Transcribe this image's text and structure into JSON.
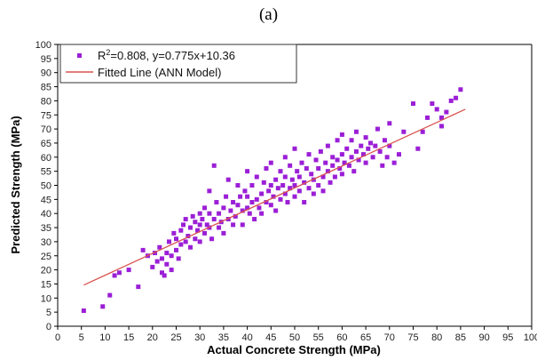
{
  "panel_label": "(a)",
  "chart_data": {
    "type": "scatter",
    "xlabel": "Actual Concrete Strength (MPa)",
    "ylabel": "Predicted Strength (MPa)",
    "xlim": [
      0,
      100
    ],
    "ylim": [
      0,
      100
    ],
    "xticks": [
      0,
      5,
      10,
      15,
      20,
      25,
      30,
      35,
      40,
      45,
      50,
      55,
      60,
      65,
      70,
      75,
      80,
      85,
      90,
      95,
      100
    ],
    "yticks": [
      0,
      5,
      10,
      15,
      20,
      25,
      30,
      35,
      40,
      45,
      50,
      55,
      60,
      65,
      70,
      75,
      80,
      85,
      90,
      95,
      100
    ],
    "grid": false,
    "legend_position": "top-left",
    "series": [
      {
        "name": "R2=0.808, y=0.775x+10.36",
        "legend_base": "R",
        "legend_sup": "2",
        "legend_rest": "=0.808, y=0.775x+10.36",
        "kind": "scatter",
        "color": "#9b1fd6",
        "points": [
          [
            5.5,
            5.5
          ],
          [
            9.5,
            7
          ],
          [
            11,
            11
          ],
          [
            12,
            18
          ],
          [
            13,
            19
          ],
          [
            15,
            20
          ],
          [
            17,
            14
          ],
          [
            18,
            27
          ],
          [
            19,
            25
          ],
          [
            20,
            21
          ],
          [
            20.5,
            26
          ],
          [
            21,
            23
          ],
          [
            21.5,
            28
          ],
          [
            22,
            19
          ],
          [
            22,
            24
          ],
          [
            22.5,
            18
          ],
          [
            23,
            22
          ],
          [
            23,
            26
          ],
          [
            23.5,
            30
          ],
          [
            24,
            25
          ],
          [
            24,
            20
          ],
          [
            24.5,
            33
          ],
          [
            25,
            27
          ],
          [
            25,
            31
          ],
          [
            25.5,
            24
          ],
          [
            26,
            29
          ],
          [
            26,
            34
          ],
          [
            26.5,
            36
          ],
          [
            27,
            30
          ],
          [
            27,
            38
          ],
          [
            27.5,
            32
          ],
          [
            28,
            28
          ],
          [
            28,
            35
          ],
          [
            28.5,
            39
          ],
          [
            29,
            31
          ],
          [
            29,
            37
          ],
          [
            29.5,
            34
          ],
          [
            30,
            36
          ],
          [
            30,
            40
          ],
          [
            30,
            30
          ],
          [
            30.5,
            38
          ],
          [
            31,
            33
          ],
          [
            31,
            42
          ],
          [
            31.5,
            36
          ],
          [
            32,
            35
          ],
          [
            32,
            40
          ],
          [
            32,
            48
          ],
          [
            32.5,
            31
          ],
          [
            33,
            38
          ],
          [
            33,
            57
          ],
          [
            33.5,
            44
          ],
          [
            34,
            35
          ],
          [
            34,
            40
          ],
          [
            34.5,
            37
          ],
          [
            35,
            42
          ],
          [
            35,
            33
          ],
          [
            35.5,
            46
          ],
          [
            36,
            38
          ],
          [
            36,
            52
          ],
          [
            36.5,
            41
          ],
          [
            37,
            36
          ],
          [
            37,
            44
          ],
          [
            37.5,
            39
          ],
          [
            38,
            43
          ],
          [
            38,
            50
          ],
          [
            38.5,
            46
          ],
          [
            39,
            41
          ],
          [
            39,
            36
          ],
          [
            39.5,
            48
          ],
          [
            40,
            42
          ],
          [
            40,
            46
          ],
          [
            40,
            55
          ],
          [
            40.5,
            40
          ],
          [
            41,
            44
          ],
          [
            41,
            50
          ],
          [
            41.5,
            38
          ],
          [
            42,
            45
          ],
          [
            42,
            53
          ],
          [
            42.5,
            42
          ],
          [
            43,
            47
          ],
          [
            43,
            40
          ],
          [
            43.5,
            51
          ],
          [
            44,
            44
          ],
          [
            44,
            56
          ],
          [
            44.5,
            48
          ],
          [
            45,
            43
          ],
          [
            45,
            50
          ],
          [
            45,
            58
          ],
          [
            45.5,
            46
          ],
          [
            46,
            52
          ],
          [
            46,
            41
          ],
          [
            46.5,
            49
          ],
          [
            47,
            45
          ],
          [
            47,
            55
          ],
          [
            47.5,
            50
          ],
          [
            48,
            47
          ],
          [
            48,
            53
          ],
          [
            48,
            60
          ],
          [
            48.5,
            44
          ],
          [
            49,
            49
          ],
          [
            49,
            57
          ],
          [
            49.5,
            52
          ],
          [
            50,
            46
          ],
          [
            50,
            50
          ],
          [
            50,
            63
          ],
          [
            50.5,
            55
          ],
          [
            51,
            48
          ],
          [
            51,
            53
          ],
          [
            51.5,
            58
          ],
          [
            52,
            44
          ],
          [
            52,
            51
          ],
          [
            52.5,
            56
          ],
          [
            53,
            49
          ],
          [
            53,
            61
          ],
          [
            53.5,
            54
          ],
          [
            54,
            47
          ],
          [
            54,
            52
          ],
          [
            54.5,
            59
          ],
          [
            55,
            50
          ],
          [
            55,
            56
          ],
          [
            55.5,
            62
          ],
          [
            56,
            53
          ],
          [
            56,
            48
          ],
          [
            56.5,
            58
          ],
          [
            57,
            55
          ],
          [
            57,
            64
          ],
          [
            57.5,
            51
          ],
          [
            58,
            57
          ],
          [
            58,
            60
          ],
          [
            58.5,
            53
          ],
          [
            59,
            59
          ],
          [
            59,
            66
          ],
          [
            59.5,
            56
          ],
          [
            60,
            54
          ],
          [
            60,
            61
          ],
          [
            60,
            68
          ],
          [
            60.5,
            58
          ],
          [
            61,
            63
          ],
          [
            61.5,
            57
          ],
          [
            62,
            60
          ],
          [
            62,
            66
          ],
          [
            62.5,
            55
          ],
          [
            63,
            62
          ],
          [
            63,
            69
          ],
          [
            63.5,
            59
          ],
          [
            64,
            64
          ],
          [
            64.5,
            61
          ],
          [
            65,
            58
          ],
          [
            65,
            67
          ],
          [
            65.5,
            63
          ],
          [
            66,
            65
          ],
          [
            66.5,
            60
          ],
          [
            67,
            64
          ],
          [
            67.5,
            70
          ],
          [
            68,
            62
          ],
          [
            68.5,
            57
          ],
          [
            69,
            66
          ],
          [
            69.5,
            60
          ],
          [
            70,
            64
          ],
          [
            70,
            72
          ],
          [
            71,
            58
          ],
          [
            72,
            61
          ],
          [
            73,
            69
          ],
          [
            75,
            79
          ],
          [
            76,
            63
          ],
          [
            77,
            69
          ],
          [
            78,
            74
          ],
          [
            79,
            79
          ],
          [
            80,
            77
          ],
          [
            81,
            71
          ],
          [
            81,
            74
          ],
          [
            82,
            76
          ],
          [
            83,
            80
          ],
          [
            84,
            81
          ],
          [
            85,
            84
          ]
        ]
      },
      {
        "name": "Fitted Line (ANN Model)",
        "kind": "line",
        "color": "#d9534f",
        "x": [
          5.5,
          86
        ],
        "y": [
          14.6,
          77
        ]
      }
    ]
  }
}
